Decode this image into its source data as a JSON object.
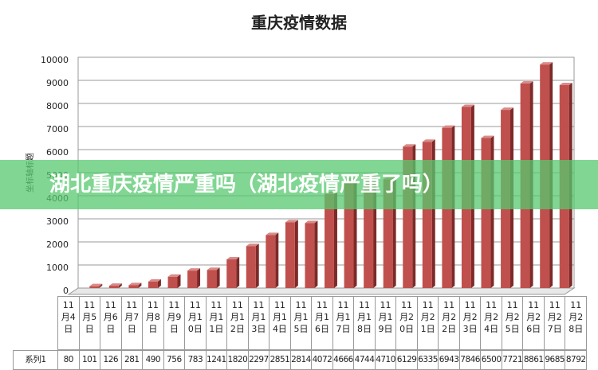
{
  "chart_data": {
    "type": "bar",
    "title": "重庆疫情数据",
    "y_label": "坐标轴标题",
    "categories": [
      "11月4日",
      "11月5日",
      "11月6日",
      "11月7日",
      "11月8日",
      "11月9日",
      "11月10日",
      "11月11日",
      "11月12日",
      "11月13日",
      "11月14日",
      "11月15日",
      "11月16日",
      "11月17日",
      "11月18日",
      "11月19日",
      "11月20日",
      "11月21日",
      "11月22日",
      "11月23日",
      "11月24日",
      "11月25日",
      "11月26日",
      "11月27日",
      "11月28日"
    ],
    "series": [
      {
        "name": "系列1",
        "color": "#c0504d",
        "values": [
          80,
          101,
          126,
          281,
          490,
          756,
          783,
          1241,
          1820,
          2297,
          2851,
          2814,
          4072,
          4666,
          4744,
          4710,
          6129,
          6335,
          6943,
          7846,
          6500,
          7721,
          8861,
          9685,
          8792
        ]
      }
    ],
    "ylim": [
      0,
      10000
    ],
    "yticks": [
      0,
      1000,
      2000,
      3000,
      4000,
      5000,
      6000,
      7000,
      8000,
      9000,
      10000
    ],
    "grid": true
  },
  "banner": "湖北重庆疫情严重吗（湖北疫情严重了吗）"
}
